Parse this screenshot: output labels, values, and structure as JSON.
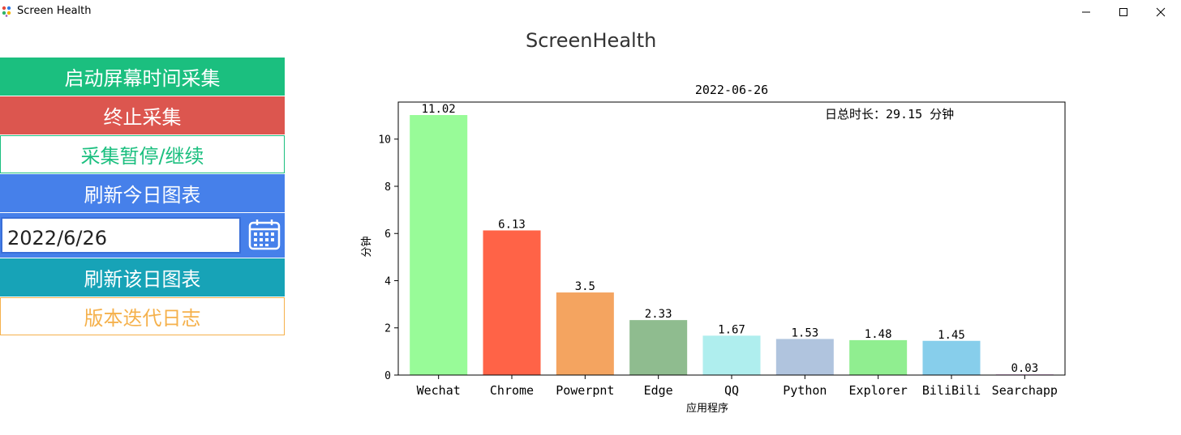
{
  "window": {
    "title": "Screen Health",
    "icon": "app-dots-icon",
    "controls": [
      "minimize-icon",
      "maximize-icon",
      "close-icon"
    ]
  },
  "heading": "ScreenHealth",
  "buttons": {
    "start": "启动屏幕时间采集",
    "stop": "终止采集",
    "pause": "采集暂停/继续",
    "refresh_today": "刷新今日图表",
    "refresh_date": "刷新该日图表",
    "changelog": "版本迭代日志"
  },
  "date_input": {
    "value": "2022/6/26",
    "icon": "calendar-icon"
  },
  "colors": {
    "start": "#1bbf7f",
    "stop": "#dc564f",
    "refresh_today": "#4680ea",
    "refresh_date": "#17a3b7",
    "changelog": "#f5b14c"
  },
  "chart_data": {
    "type": "bar",
    "title": "2022-06-26",
    "annotation": "日总时长：29.15 分钟",
    "xlabel": "应用程序",
    "ylabel": "分钟",
    "categories": [
      "Wechat",
      "Chrome",
      "Powerpnt",
      "Edge",
      "QQ",
      "Python",
      "Explorer",
      "BiliBili",
      "Searchapp"
    ],
    "values": [
      11.02,
      6.13,
      3.5,
      2.33,
      1.67,
      1.53,
      1.48,
      1.45,
      0.03
    ],
    "value_labels": [
      "11.02",
      "6.13",
      "3.5",
      "2.33",
      "1.67",
      "1.53",
      "1.48",
      "1.45",
      "0.03"
    ],
    "colors": [
      "#98fb98",
      "#ff6347",
      "#f4a460",
      "#8fbc8f",
      "#afeeee",
      "#b0c4de",
      "#90ee90",
      "#87ceeb",
      "#dda0dd"
    ],
    "yticks": [
      0,
      2,
      4,
      6,
      8,
      10
    ],
    "ylim": [
      0,
      11.57
    ],
    "grid": false
  }
}
